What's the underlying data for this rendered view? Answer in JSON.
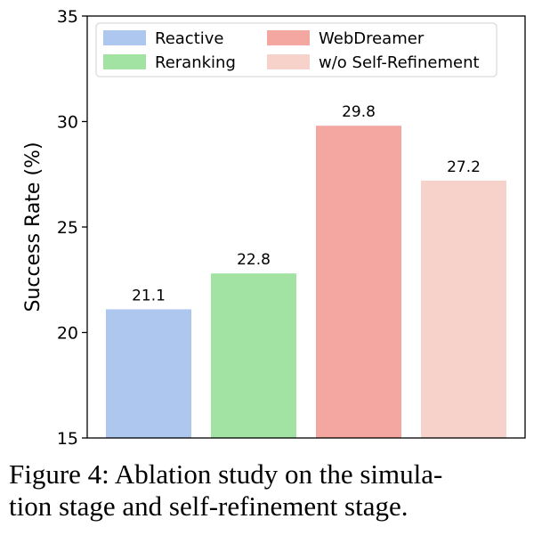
{
  "chart_data": {
    "type": "bar",
    "categories": [
      "Reactive",
      "Reranking",
      "WebDreamer",
      "w/o Self-Refinement"
    ],
    "values": [
      21.1,
      22.8,
      29.8,
      27.2
    ],
    "value_labels": [
      "21.1",
      "22.8",
      "29.8",
      "27.2"
    ],
    "colors": [
      "#aec7ef",
      "#a2e3a3",
      "#f4a6a0",
      "#f7d2cb"
    ],
    "ylabel": "Success Rate (%)",
    "ylim": [
      15,
      35
    ],
    "yticks": [
      15,
      20,
      25,
      30,
      35
    ],
    "grid": false,
    "legend": {
      "placement": "top",
      "columns": 2,
      "entries": [
        "Reactive",
        "Reranking",
        "WebDreamer",
        "w/o Self-Refinement"
      ]
    }
  },
  "caption": {
    "line1": "Figure 4:  Ablation study on the simula-",
    "line2": "tion stage and self-refinement stage."
  }
}
